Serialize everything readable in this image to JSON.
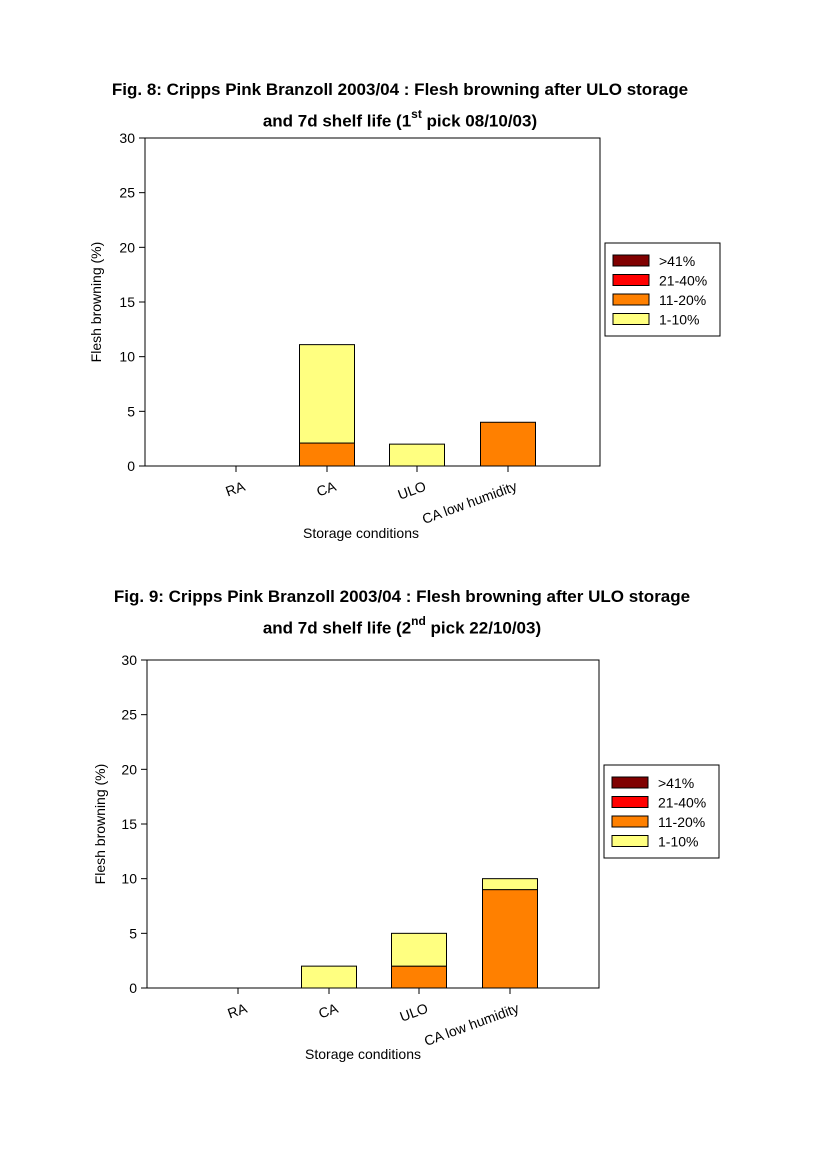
{
  "chart_data": [
    {
      "type": "bar",
      "stacked": true,
      "title_line1": "Fig. 8: Cripps Pink Branzoll 2003/04 : Flesh browning after ULO storage",
      "title_line2_pre": "and 7d shelf life (1",
      "title_line2_sup": "st",
      "title_line2_post": " pick 08/10/03)",
      "xlabel": "Storage conditions",
      "ylabel": "Flesh browning (%)",
      "ylim": [
        0,
        30
      ],
      "yticks": [
        "0",
        "5",
        "10",
        "15",
        "20",
        "25",
        "30"
      ],
      "categories": [
        "RA",
        "CA",
        "ULO",
        "CA low humidity"
      ],
      "legend_position": "right",
      "series": [
        {
          "name": "1-10%",
          "color": "#ffff80",
          "values": [
            0,
            9,
            2,
            0
          ]
        },
        {
          "name": "11-20%",
          "color": "#ff8000",
          "values": [
            0,
            2.1,
            0,
            4
          ]
        },
        {
          "name": "21-40%",
          "color": "#ff0000",
          "values": [
            0,
            0,
            0,
            0
          ]
        },
        {
          "name": ">41%",
          "color": "#800000",
          "values": [
            0,
            0,
            0,
            0
          ]
        }
      ]
    },
    {
      "type": "bar",
      "stacked": true,
      "title_line1": "Fig. 9: Cripps Pink Branzoll 2003/04 : Flesh browning after ULO storage",
      "title_line2_pre": "and 7d shelf life (2",
      "title_line2_sup": "nd",
      "title_line2_post": " pick 22/10/03)",
      "xlabel": "Storage conditions",
      "ylabel": "Flesh browning (%)",
      "ylim": [
        0,
        30
      ],
      "yticks": [
        "0",
        "5",
        "10",
        "15",
        "20",
        "25",
        "30"
      ],
      "categories": [
        "RA",
        "CA",
        "ULO",
        "CA low humidity"
      ],
      "legend_position": "right",
      "series": [
        {
          "name": "1-10%",
          "color": "#ffff80",
          "values": [
            0,
            2,
            3,
            1
          ]
        },
        {
          "name": "11-20%",
          "color": "#ff8000",
          "values": [
            0,
            0,
            2,
            9
          ]
        },
        {
          "name": "21-40%",
          "color": "#ff0000",
          "values": [
            0,
            0,
            0,
            0
          ]
        },
        {
          "name": ">41%",
          "color": "#800000",
          "values": [
            0,
            0,
            0,
            0
          ]
        }
      ]
    }
  ]
}
